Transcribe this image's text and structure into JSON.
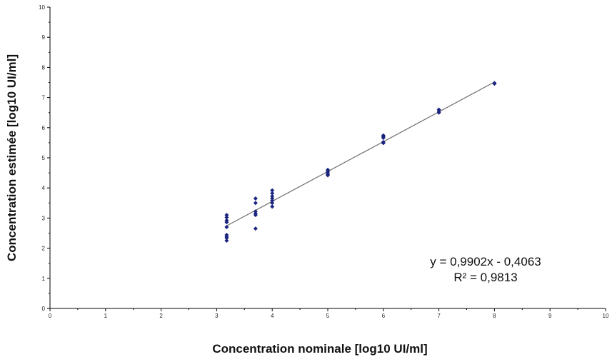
{
  "chart_data": {
    "type": "scatter",
    "xlabel": "Concentration nominale [log10 UI/ml]",
    "ylabel": "Concentration estimée [log10 UI/ml]",
    "xlim": [
      0,
      10
    ],
    "ylim": [
      0,
      10
    ],
    "xticks": [
      "0",
      "1",
      "2",
      "3",
      "4",
      "5",
      "6",
      "7",
      "8",
      "9",
      "10"
    ],
    "yticks": [
      "0",
      "1",
      "2",
      "3",
      "4",
      "5",
      "6",
      "7",
      "8",
      "9",
      "10"
    ],
    "grid": false,
    "legend": "none",
    "series": [
      {
        "marker_color": "#1a237e",
        "points": [
          [
            3.18,
            3.1
          ],
          [
            3.18,
            3.02
          ],
          [
            3.18,
            2.92
          ],
          [
            3.18,
            2.86
          ],
          [
            3.18,
            2.7
          ],
          [
            3.18,
            2.44
          ],
          [
            3.18,
            2.38
          ],
          [
            3.18,
            2.34
          ],
          [
            3.18,
            2.25
          ],
          [
            3.7,
            3.65
          ],
          [
            3.7,
            3.5
          ],
          [
            3.7,
            3.22
          ],
          [
            3.7,
            3.15
          ],
          [
            3.7,
            3.1
          ],
          [
            3.7,
            2.65
          ],
          [
            4.0,
            3.92
          ],
          [
            4.0,
            3.82
          ],
          [
            4.0,
            3.72
          ],
          [
            4.0,
            3.65
          ],
          [
            4.0,
            3.58
          ],
          [
            4.0,
            3.5
          ],
          [
            4.0,
            3.38
          ],
          [
            5.0,
            4.6
          ],
          [
            5.0,
            4.55
          ],
          [
            5.0,
            4.5
          ],
          [
            5.0,
            4.45
          ],
          [
            5.0,
            4.42
          ],
          [
            6.0,
            5.74
          ],
          [
            6.0,
            5.7
          ],
          [
            6.0,
            5.66
          ],
          [
            6.0,
            5.52
          ],
          [
            6.0,
            5.49
          ],
          [
            7.0,
            6.6
          ],
          [
            7.0,
            6.55
          ],
          [
            7.0,
            6.5
          ],
          [
            8.0,
            7.48
          ],
          [
            8.0,
            7.46
          ]
        ]
      }
    ],
    "trendline": {
      "slope": 0.9902,
      "intercept": -0.4063,
      "x_start": 3.18,
      "x_end": 8.0,
      "line_color": "#6e6e6e"
    },
    "annotations": {
      "equation": "y = 0,9902x  - 0,4063",
      "r_squared": "R² = 0,9813"
    }
  }
}
